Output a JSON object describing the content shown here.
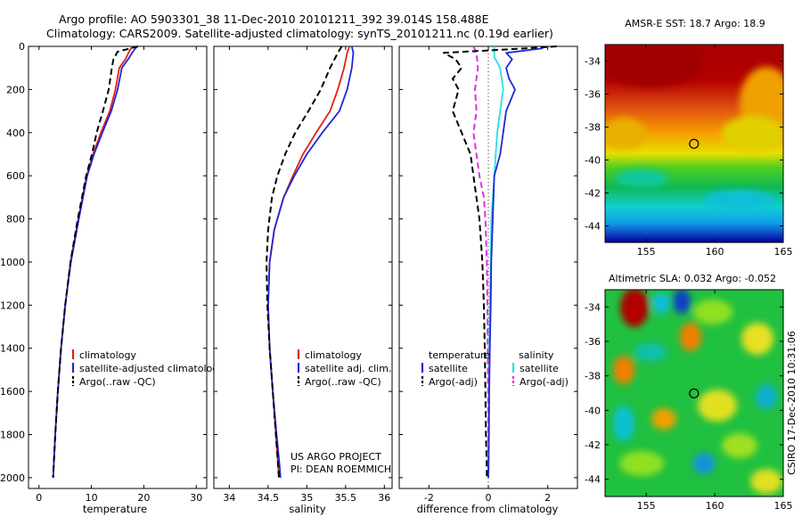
{
  "header": {
    "line1": "Argo profile: AO 5903301_38 11-Dec-2010 20101211_392 39.014S 158.488E",
    "line2": "Climatology: CARS2009. Satellite-adjusted climatology: synTS_20101211.nc (0.19d earlier)"
  },
  "colors": {
    "climatology": "#e0201a",
    "satellite": "#1e28d8",
    "argo": "#000000",
    "satellite_salinity_diff": "#29e0e0",
    "argo_salinity_diff": "#e030e0"
  },
  "chart_data": [
    {
      "type": "line",
      "id": "temperature",
      "xlabel": "temperature",
      "ylabel": "",
      "xlim": [
        -2,
        32
      ],
      "ylim": [
        2050,
        0
      ],
      "xticks": [
        0,
        10,
        20,
        30
      ],
      "yticks": [
        0,
        200,
        400,
        600,
        800,
        1000,
        1200,
        1400,
        1600,
        1800,
        2000
      ],
      "legend_placement": "lower-right",
      "legend": [
        "climatology",
        "satellite-adjusted climatology",
        "Argo(..raw -QC)"
      ],
      "series": [
        {
          "name": "climatology",
          "style": "solid",
          "color": "#e0201a",
          "x": [
            17.8,
            17.2,
            16.5,
            15.3,
            14.6,
            13.5,
            11.8,
            10.3,
            9.1,
            7.5,
            6.0,
            5.0,
            4.2,
            3.6,
            3.1,
            2.8,
            2.7
          ],
          "y": [
            0,
            25,
            60,
            100,
            200,
            300,
            400,
            500,
            600,
            800,
            1000,
            1200,
            1400,
            1600,
            1800,
            1950,
            2000
          ]
        },
        {
          "name": "satellite-adjusted climatology",
          "style": "solid",
          "color": "#1e28d8",
          "x": [
            18.7,
            17.9,
            17.0,
            15.8,
            15.0,
            13.8,
            12.1,
            10.5,
            9.2,
            7.6,
            6.1,
            5.0,
            4.2,
            3.6,
            3.1,
            2.8,
            2.7
          ],
          "y": [
            0,
            25,
            60,
            100,
            200,
            300,
            400,
            500,
            600,
            800,
            1000,
            1200,
            1400,
            1600,
            1800,
            1950,
            2000
          ]
        },
        {
          "name": "Argo(..raw -QC)",
          "style": "dashed",
          "color": "#000000",
          "x": [
            18.9,
            15.0,
            14.2,
            13.9,
            13.3,
            12.2,
            11.0,
            10.1,
            9.0,
            7.4,
            6.0,
            5.0,
            4.2,
            3.6,
            3.1,
            2.8,
            2.7
          ],
          "y": [
            0,
            25,
            60,
            100,
            200,
            300,
            400,
            500,
            600,
            800,
            1000,
            1200,
            1400,
            1600,
            1800,
            1950,
            2000
          ]
        }
      ]
    },
    {
      "type": "line",
      "id": "salinity",
      "xlabel": "salinity",
      "ylabel": "",
      "xlim": [
        33.8,
        36.1
      ],
      "ylim": [
        2050,
        0
      ],
      "xticks": [
        34,
        34.5,
        35,
        35.5,
        36
      ],
      "xtick_labels": [
        "34",
        "34.5",
        "35",
        "35.5",
        "36"
      ],
      "legend_placement": "lower-right",
      "legend": [
        "climatology",
        "satellite adj. clim.",
        "Argo(..raw -QC)"
      ],
      "annotation": [
        "US ARGO PROJECT",
        "PI: DEAN ROEMMICH"
      ],
      "series": [
        {
          "name": "climatology",
          "style": "solid",
          "color": "#e0201a",
          "x": [
            35.55,
            35.52,
            35.48,
            35.4,
            35.3,
            35.12,
            34.95,
            34.82,
            34.7,
            34.58,
            34.52,
            34.5,
            34.52,
            34.56,
            34.6,
            34.63,
            34.64
          ],
          "y": [
            0,
            30,
            100,
            200,
            300,
            400,
            500,
            600,
            700,
            850,
            1000,
            1200,
            1400,
            1600,
            1800,
            1950,
            2000
          ]
        },
        {
          "name": "satellite adj. clim.",
          "style": "solid",
          "color": "#1e28d8",
          "x": [
            35.58,
            35.6,
            35.58,
            35.52,
            35.42,
            35.2,
            35.0,
            34.84,
            34.7,
            34.58,
            34.52,
            34.5,
            34.52,
            34.56,
            34.61,
            34.65,
            34.66
          ],
          "y": [
            0,
            30,
            100,
            200,
            300,
            400,
            500,
            600,
            700,
            850,
            1000,
            1200,
            1400,
            1600,
            1800,
            1950,
            2000
          ]
        },
        {
          "name": "Argo(..raw -QC)",
          "style": "dashed",
          "color": "#000000",
          "x": [
            35.45,
            35.4,
            35.3,
            35.18,
            35.02,
            34.85,
            34.72,
            34.62,
            34.55,
            34.5,
            34.48,
            34.49,
            34.52,
            34.56,
            34.6,
            34.63,
            34.64
          ],
          "y": [
            0,
            30,
            100,
            200,
            300,
            400,
            500,
            600,
            700,
            850,
            1000,
            1200,
            1400,
            1600,
            1800,
            1950,
            2000
          ]
        }
      ]
    },
    {
      "type": "line",
      "id": "difference",
      "xlabel": "difference from climatology",
      "ylabel": "",
      "xlim": [
        -3,
        3
      ],
      "ylim": [
        2050,
        0
      ],
      "xticks": [
        -2,
        0,
        2
      ],
      "legend_placement": "lower",
      "legend_left_title": "temperature",
      "legend_right_title": "salinity",
      "legend": [
        "satellite",
        "Argo(-adj)",
        "satellite",
        "Argo(-adj)"
      ],
      "series": [
        {
          "name": "temperature satellite",
          "style": "solid",
          "color": "#1e28d8",
          "x": [
            1.9,
            1.8,
            0.6,
            0.8,
            0.6,
            0.7,
            0.9,
            0.6,
            0.5,
            0.4,
            0.2,
            0.15,
            0.1,
            0.08,
            0.05,
            0.03,
            0.02,
            0.01,
            0.0
          ],
          "y": [
            0,
            10,
            30,
            60,
            100,
            150,
            200,
            300,
            400,
            500,
            600,
            800,
            1000,
            1200,
            1400,
            1600,
            1800,
            1950,
            2000
          ]
        },
        {
          "name": "temperature Argo(-adj)",
          "style": "dashed",
          "color": "#000000",
          "x": [
            2.3,
            1.2,
            -1.5,
            -1.1,
            -0.9,
            -1.2,
            -1.0,
            -1.2,
            -0.9,
            -0.6,
            -0.5,
            -0.3,
            -0.2,
            -0.15,
            -0.12,
            -0.1,
            -0.08,
            -0.05,
            -0.05
          ],
          "y": [
            0,
            10,
            30,
            60,
            100,
            150,
            200,
            300,
            400,
            500,
            600,
            800,
            1000,
            1200,
            1400,
            1600,
            1800,
            1950,
            2000
          ]
        },
        {
          "name": "salinity satellite",
          "style": "solid",
          "color": "#29e0e0",
          "x": [
            0.2,
            0.2,
            0.4,
            0.5,
            0.4,
            0.3,
            0.25,
            0.2,
            0.15,
            0.1,
            0.08,
            0.05,
            0.03,
            0.02,
            0.01,
            0.0
          ],
          "y": [
            0,
            50,
            100,
            200,
            300,
            400,
            500,
            600,
            700,
            800,
            1000,
            1200,
            1400,
            1600,
            1800,
            2000
          ]
        },
        {
          "name": "salinity Argo(-adj)",
          "style": "dashed",
          "color": "#e030e0",
          "x": [
            -0.5,
            -0.4,
            -0.35,
            -0.45,
            -0.4,
            -0.5,
            -0.3,
            -0.15,
            -0.1,
            -0.05,
            -0.03,
            -0.02,
            -0.01,
            0.0
          ],
          "y": [
            0,
            30,
            100,
            200,
            300,
            400,
            600,
            700,
            800,
            1000,
            1200,
            1400,
            1600,
            2000
          ]
        }
      ]
    },
    {
      "type": "heatmap",
      "id": "sst-map",
      "title": "AMSR-E SST: 18.7 Argo: 18.9",
      "xlim": [
        152,
        165
      ],
      "ylim": [
        -45,
        -33
      ],
      "xticks": [
        155,
        160,
        165
      ],
      "yticks": [
        -34,
        -36,
        -38,
        -40,
        -42,
        -44
      ],
      "marker": {
        "lon": 158.488,
        "lat": -39.014
      }
    },
    {
      "type": "heatmap",
      "id": "sla-map",
      "title": "Altimetric SLA: 0.032 Argo: -0.052",
      "xlim": [
        152,
        165
      ],
      "ylim": [
        -45,
        -33
      ],
      "xticks": [
        155,
        160,
        165
      ],
      "yticks": [
        -34,
        -36,
        -38,
        -40,
        -42,
        -44
      ],
      "marker": {
        "lon": 158.488,
        "lat": -39.014
      }
    }
  ],
  "side_label": "CSIRO 17-Dec-2010 10:31:06"
}
